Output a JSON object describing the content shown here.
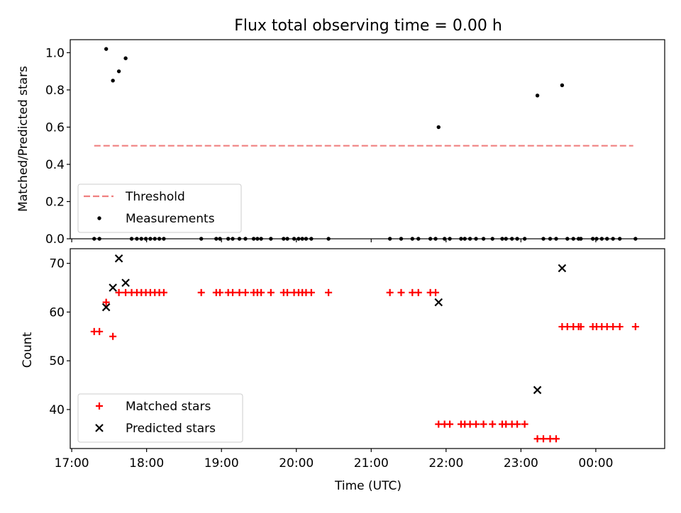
{
  "title": "Flux total observing time = 0.00 h",
  "chart_data": [
    {
      "type": "scatter",
      "ylabel": "Matched/Predicted stars",
      "xlim": [
        16.98,
        24.92
      ],
      "ylim": [
        0,
        1.07
      ],
      "yticks": [
        0.0,
        0.2,
        0.4,
        0.6,
        0.8,
        1.0
      ],
      "ytick_labels": [
        "0.0",
        "0.2",
        "0.4",
        "0.6",
        "0.8",
        "1.0"
      ],
      "legend_position": "lower-left",
      "series": [
        {
          "name": "Threshold",
          "style": "dashed-line",
          "color": "#f08080",
          "x": [
            17.3,
            24.5
          ],
          "y": [
            0.5,
            0.5
          ]
        },
        {
          "name": "Measurements",
          "style": "dot",
          "color": "#000000",
          "x": [
            17.3,
            17.37,
            17.46,
            17.55,
            17.63,
            17.72,
            17.8,
            17.87,
            17.93,
            17.99,
            18.05,
            18.11,
            18.17,
            18.23,
            18.73,
            18.93,
            18.98,
            19.09,
            19.15,
            19.24,
            19.32,
            19.43,
            19.48,
            19.53,
            19.66,
            19.83,
            19.88,
            19.97,
            20.03,
            20.08,
            20.13,
            20.2,
            20.43,
            21.25,
            21.4,
            21.55,
            21.63,
            21.79,
            21.86,
            21.9,
            21.98,
            22.05,
            22.2,
            22.25,
            22.32,
            22.4,
            22.5,
            22.62,
            22.75,
            22.8,
            22.88,
            22.95,
            23.05,
            23.22,
            23.3,
            23.39,
            23.47,
            23.55,
            23.62,
            23.7,
            23.77,
            23.8,
            23.96,
            24.01,
            24.08,
            24.15,
            24.23,
            24.32,
            24.53
          ],
          "y": [
            0,
            0,
            1.02,
            0.85,
            0.9,
            0.97,
            0,
            0,
            0,
            0,
            0,
            0,
            0,
            0,
            0,
            0,
            0,
            0,
            0,
            0,
            0,
            0,
            0,
            0,
            0,
            0,
            0,
            0,
            0,
            0,
            0,
            0,
            0,
            0,
            0,
            0,
            0,
            0,
            0,
            0.6,
            0,
            0,
            0,
            0,
            0,
            0,
            0,
            0,
            0,
            0,
            0,
            0,
            0,
            0.77,
            0,
            0,
            0,
            0.825,
            0,
            0,
            0,
            0,
            0,
            0,
            0,
            0,
            0,
            0,
            0
          ]
        }
      ]
    },
    {
      "type": "scatter",
      "xlabel": "Time (UTC)",
      "ylabel": "Count",
      "xlim": [
        16.98,
        24.92
      ],
      "ylim": [
        32,
        73
      ],
      "xticks": [
        17,
        18,
        19,
        20,
        21,
        22,
        23,
        24
      ],
      "xtick_labels": [
        "17:00",
        "18:00",
        "19:00",
        "20:00",
        "21:00",
        "22:00",
        "23:00",
        "00:00"
      ],
      "yticks": [
        40,
        50,
        60,
        70
      ],
      "ytick_labels": [
        "40",
        "50",
        "60",
        "70"
      ],
      "legend_position": "lower-left",
      "series": [
        {
          "name": "Matched stars",
          "style": "plus",
          "color": "#ff0000",
          "x": [
            17.3,
            17.37,
            17.46,
            17.55,
            17.63,
            17.72,
            17.8,
            17.87,
            17.93,
            17.99,
            18.05,
            18.11,
            18.17,
            18.23,
            18.73,
            18.93,
            18.98,
            19.09,
            19.15,
            19.24,
            19.32,
            19.43,
            19.48,
            19.53,
            19.66,
            19.83,
            19.88,
            19.97,
            20.03,
            20.08,
            20.13,
            20.2,
            20.43,
            21.25,
            21.4,
            21.55,
            21.63,
            21.79,
            21.86,
            21.9,
            21.98,
            22.05,
            22.2,
            22.25,
            22.32,
            22.4,
            22.5,
            22.62,
            22.75,
            22.8,
            22.88,
            22.95,
            23.05,
            23.22,
            23.3,
            23.39,
            23.47,
            23.55,
            23.62,
            23.7,
            23.77,
            23.8,
            23.96,
            24.01,
            24.08,
            24.15,
            24.23,
            24.32,
            24.53
          ],
          "y": [
            56,
            56,
            62,
            55,
            64,
            64,
            64,
            64,
            64,
            64,
            64,
            64,
            64,
            64,
            64,
            64,
            64,
            64,
            64,
            64,
            64,
            64,
            64,
            64,
            64,
            64,
            64,
            64,
            64,
            64,
            64,
            64,
            64,
            64,
            64,
            64,
            64,
            64,
            64,
            37,
            37,
            37,
            37,
            37,
            37,
            37,
            37,
            37,
            37,
            37,
            37,
            37,
            37,
            34,
            34,
            34,
            34,
            57,
            57,
            57,
            57,
            57,
            57,
            57,
            57,
            57,
            57,
            57,
            57
          ]
        },
        {
          "name": "Predicted stars",
          "style": "x",
          "color": "#000000",
          "x": [
            17.46,
            17.55,
            17.63,
            17.72,
            21.9,
            23.22,
            23.55
          ],
          "y": [
            61,
            65,
            71,
            66,
            62,
            44,
            69
          ]
        }
      ]
    }
  ]
}
